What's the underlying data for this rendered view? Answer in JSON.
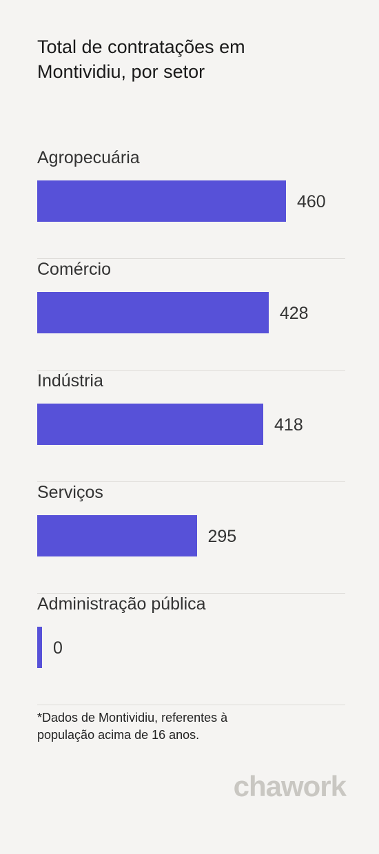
{
  "chart_data": {
    "type": "bar",
    "orientation": "horizontal",
    "title": "Total de contratações em Montividiu, por setor",
    "categories": [
      "Agropecuária",
      "Comércio",
      "Indústria",
      "Serviços",
      "Administração pública"
    ],
    "values": [
      460,
      428,
      418,
      295,
      0
    ],
    "color": "#5751d8",
    "footnote": "*Dados de Montividiu, referentes à população acima de 16 anos.",
    "logo": "chawork"
  }
}
